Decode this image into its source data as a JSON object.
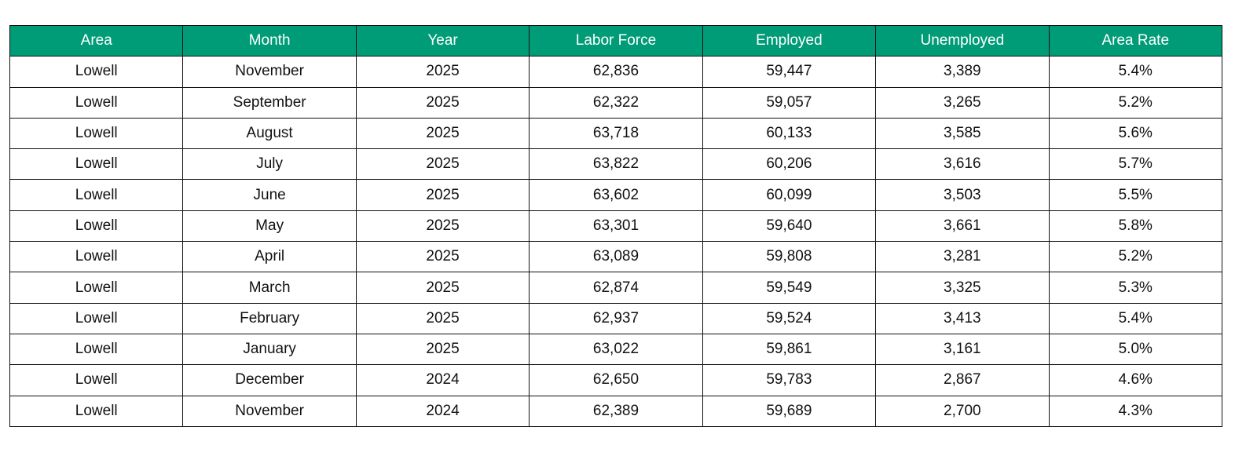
{
  "table": {
    "columns": [
      "Area",
      "Month",
      "Year",
      "Labor Force",
      "Employed",
      "Unemployed",
      "Area Rate"
    ],
    "rows": [
      [
        "Lowell",
        "November",
        "2025",
        "62,836",
        "59,447",
        "3,389",
        "5.4%"
      ],
      [
        "Lowell",
        "September",
        "2025",
        "62,322",
        "59,057",
        "3,265",
        "5.2%"
      ],
      [
        "Lowell",
        "August",
        "2025",
        "63,718",
        "60,133",
        "3,585",
        "5.6%"
      ],
      [
        "Lowell",
        "July",
        "2025",
        "63,822",
        "60,206",
        "3,616",
        "5.7%"
      ],
      [
        "Lowell",
        "June",
        "2025",
        "63,602",
        "60,099",
        "3,503",
        "5.5%"
      ],
      [
        "Lowell",
        "May",
        "2025",
        "63,301",
        "59,640",
        "3,661",
        "5.8%"
      ],
      [
        "Lowell",
        "April",
        "2025",
        "63,089",
        "59,808",
        "3,281",
        "5.2%"
      ],
      [
        "Lowell",
        "March",
        "2025",
        "62,874",
        "59,549",
        "3,325",
        "5.3%"
      ],
      [
        "Lowell",
        "February",
        "2025",
        "62,937",
        "59,524",
        "3,413",
        "5.4%"
      ],
      [
        "Lowell",
        "January",
        "2025",
        "63,022",
        "59,861",
        "3,161",
        "5.0%"
      ],
      [
        "Lowell",
        "December",
        "2024",
        "62,650",
        "59,783",
        "2,867",
        "4.6%"
      ],
      [
        "Lowell",
        "November",
        "2024",
        "62,389",
        "59,689",
        "2,700",
        "4.3%"
      ]
    ]
  }
}
